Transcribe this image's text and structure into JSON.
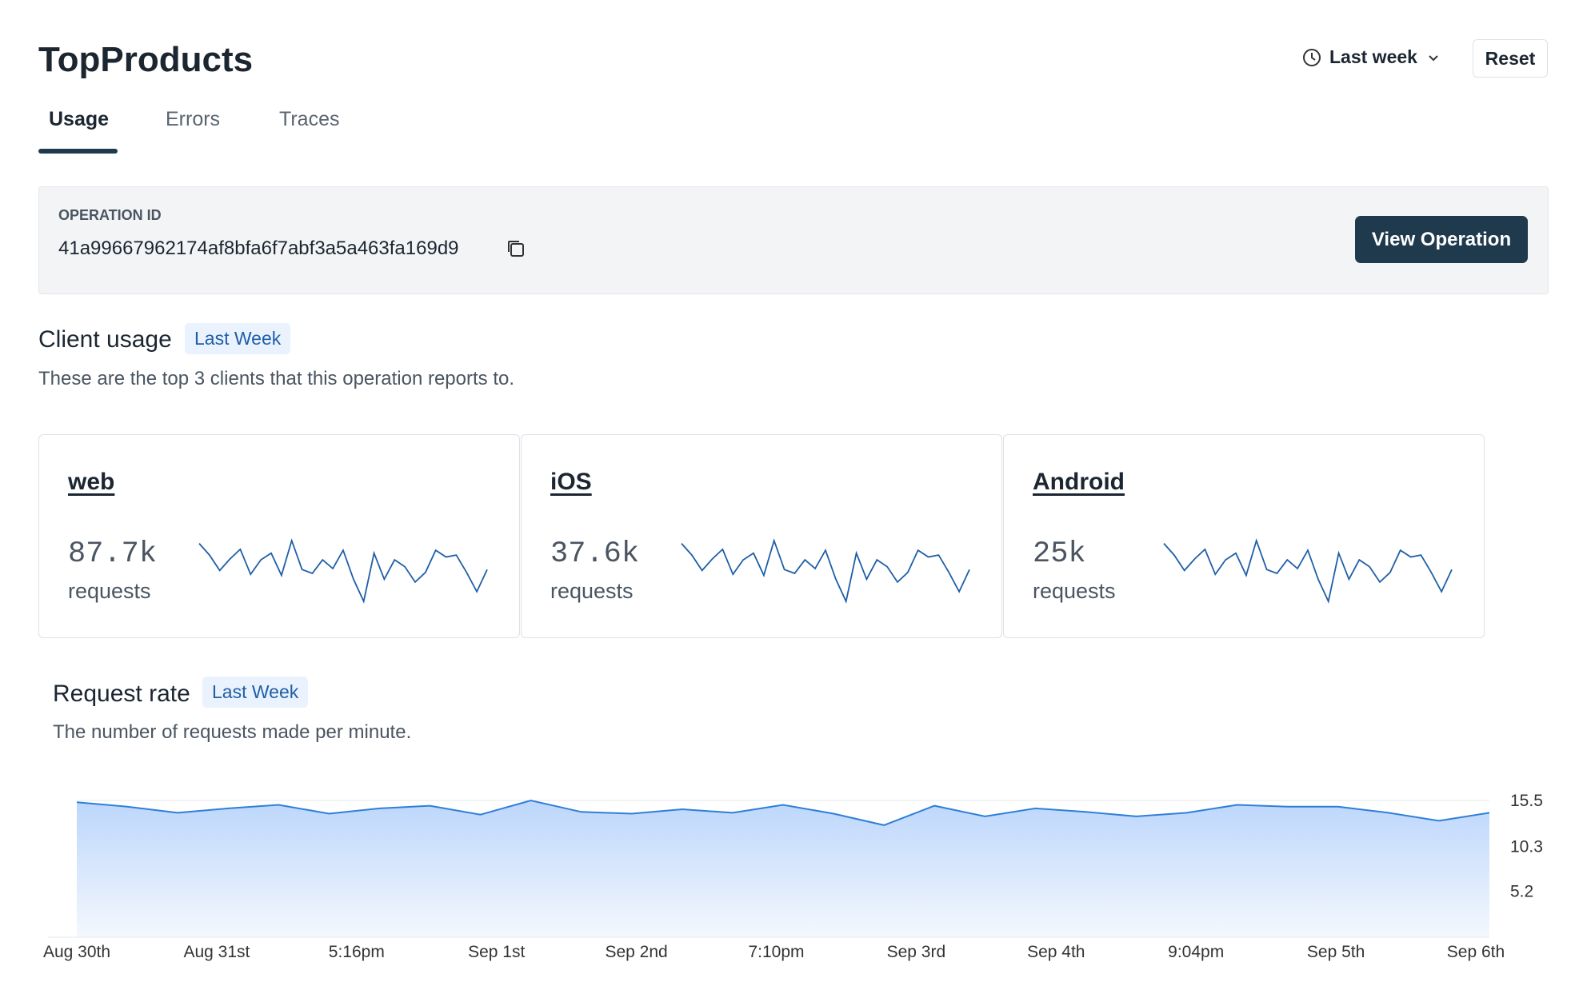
{
  "header": {
    "title": "TopProducts",
    "time_range": "Last week",
    "reset": "Reset"
  },
  "tabs": [
    "Usage",
    "Errors",
    "Traces"
  ],
  "operation": {
    "label": "OPERATION ID",
    "id": "41a99667962174af8bfa6f7abf3a5a463fa169d9",
    "button": "View Operation"
  },
  "client_usage": {
    "title": "Client usage",
    "badge": "Last Week",
    "subtitle": "These are the top 3 clients that this operation reports to.",
    "clients": [
      {
        "name": "web",
        "count": "87.7k",
        "unit": "requests",
        "sparkline": [
          64,
          52,
          36,
          48,
          58,
          32,
          47,
          54,
          31,
          67,
          37,
          33,
          47,
          38,
          57,
          27,
          4,
          54,
          27,
          47,
          40,
          24,
          34,
          57,
          50,
          52,
          34,
          14,
          37
        ]
      },
      {
        "name": "iOS",
        "count": "37.6k",
        "unit": "requests",
        "sparkline": [
          64,
          52,
          36,
          48,
          58,
          32,
          47,
          54,
          31,
          67,
          37,
          33,
          47,
          38,
          57,
          27,
          4,
          54,
          27,
          47,
          40,
          24,
          34,
          57,
          50,
          52,
          34,
          14,
          37
        ]
      },
      {
        "name": "Android",
        "count": "25k",
        "unit": "requests",
        "sparkline": [
          64,
          52,
          36,
          48,
          58,
          32,
          47,
          54,
          31,
          67,
          37,
          33,
          47,
          38,
          57,
          27,
          4,
          54,
          27,
          47,
          40,
          24,
          34,
          57,
          50,
          52,
          34,
          14,
          37
        ]
      }
    ]
  },
  "request_rate": {
    "type": "area",
    "title": "Request rate",
    "badge": "Last Week",
    "subtitle": "The number of requests made per minute.",
    "x_labels": [
      "Aug 30th",
      "Aug 31st",
      "5:16pm",
      "Sep 1st",
      "Sep 2nd",
      "7:10pm",
      "Sep 3rd",
      "Sep 4th",
      "9:04pm",
      "Sep 5th",
      "Sep 6th"
    ],
    "values": [
      15.3,
      14.8,
      14.1,
      14.6,
      15.0,
      14.0,
      14.6,
      14.9,
      13.9,
      15.5,
      14.2,
      14.0,
      14.5,
      14.1,
      15.0,
      14.0,
      12.7,
      14.9,
      13.7,
      14.6,
      14.2,
      13.7,
      14.1,
      15.0,
      14.8,
      14.8,
      14.1,
      13.2,
      14.1
    ],
    "color": "#2f7fd8",
    "ylim": [
      0,
      15.5
    ],
    "yticks": [
      15.5,
      10.3,
      5.2
    ],
    "grid": true
  }
}
